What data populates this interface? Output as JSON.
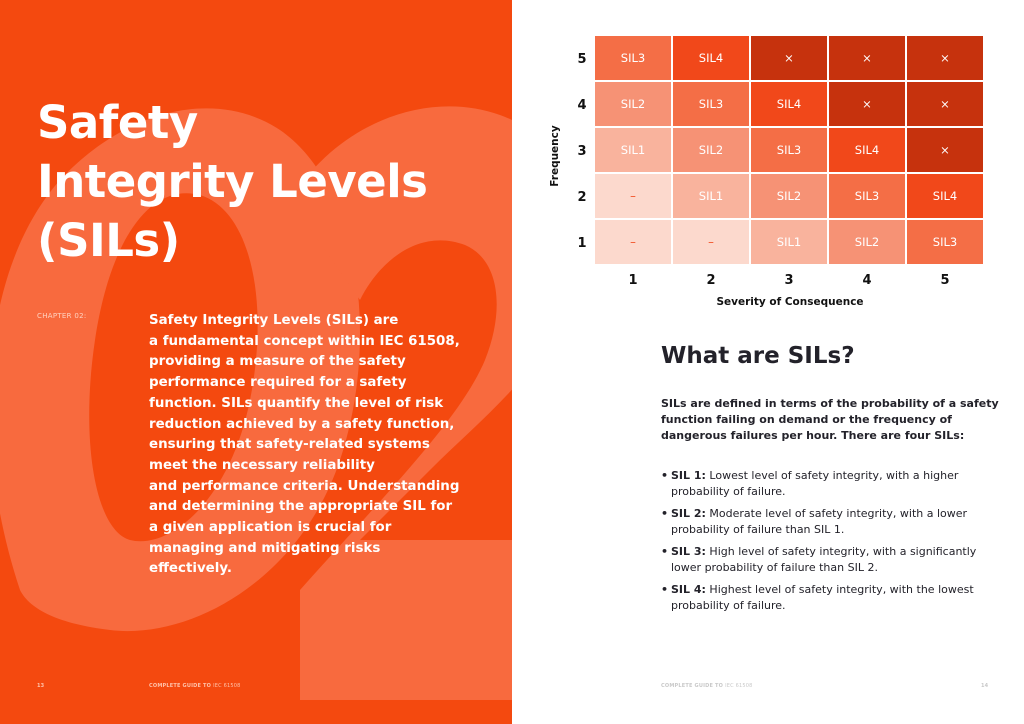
{
  "left": {
    "title_lines": [
      "Safety",
      "Integrity Levels",
      "(SILs)"
    ],
    "chapter_label": "CHAPTER 02:",
    "intro_lines": [
      "Safety Integrity Levels (SILs) are",
      "a fundamental concept within IEC 61508,",
      "providing a measure of the safety",
      "performance required for a safety",
      "function. SILs quantify the level of risk",
      "reduction achieved by a safety function,",
      "ensuring that safety-related systems",
      "meet the necessary reliability",
      "and performance criteria. Understanding",
      "and determining the appropriate SIL for",
      "a given application is crucial for",
      "managing and mitigating risks",
      "effectively."
    ],
    "page_number": "13",
    "footer_bold": "COMPLETE GUIDE TO",
    "footer_light": "IEC 61508"
  },
  "matrix": {
    "y_axis_label": "Frequency",
    "x_axis_label": "Severity of Consequence",
    "row_labels": [
      "5",
      "4",
      "3",
      "2",
      "1"
    ],
    "col_labels": [
      "1",
      "2",
      "3",
      "4",
      "5"
    ],
    "rows": [
      [
        "SIL3",
        "SIL4",
        "×",
        "×",
        "×"
      ],
      [
        "SIL2",
        "SIL3",
        "SIL4",
        "×",
        "×"
      ],
      [
        "SIL1",
        "SIL2",
        "SIL3",
        "SIL4",
        "×"
      ],
      [
        "–",
        "SIL1",
        "SIL2",
        "SIL3",
        "SIL4"
      ],
      [
        "–",
        "–",
        "SIL1",
        "SIL2",
        "SIL3"
      ]
    ],
    "colors": {
      "none": "#fcd9cd",
      "SIL1": "#f9b39d",
      "SIL2": "#f69275",
      "SIL3": "#f46e46",
      "SIL4": "#f1481a",
      "x": "#c6320d",
      "dash_text": "#f1481a"
    }
  },
  "right": {
    "heading": "What are SILs?",
    "lead_lines": [
      "SILs are defined in terms of the probability of a safety",
      "function failing on demand or the frequency of",
      "dangerous failures per hour. There are four SILs:"
    ],
    "items": [
      {
        "label": "SIL 1:",
        "lines": [
          "Lowest level of safety integrity, with a higher",
          "probability of failure."
        ]
      },
      {
        "label": "SIL 2:",
        "lines": [
          "Moderate level of safety integrity, with a lower",
          "probability of failure than SIL 1."
        ]
      },
      {
        "label": "SIL 3:",
        "lines": [
          "High level of safety integrity, with a significantly",
          "lower probability of failure than SIL 2."
        ]
      },
      {
        "label": "SIL 4:",
        "lines": [
          "Highest level of safety integrity, with the lowest",
          "probability of failure."
        ]
      }
    ],
    "footer_bold": "COMPLETE GUIDE TO",
    "footer_light": "IEC 61508",
    "page_number": "14"
  }
}
